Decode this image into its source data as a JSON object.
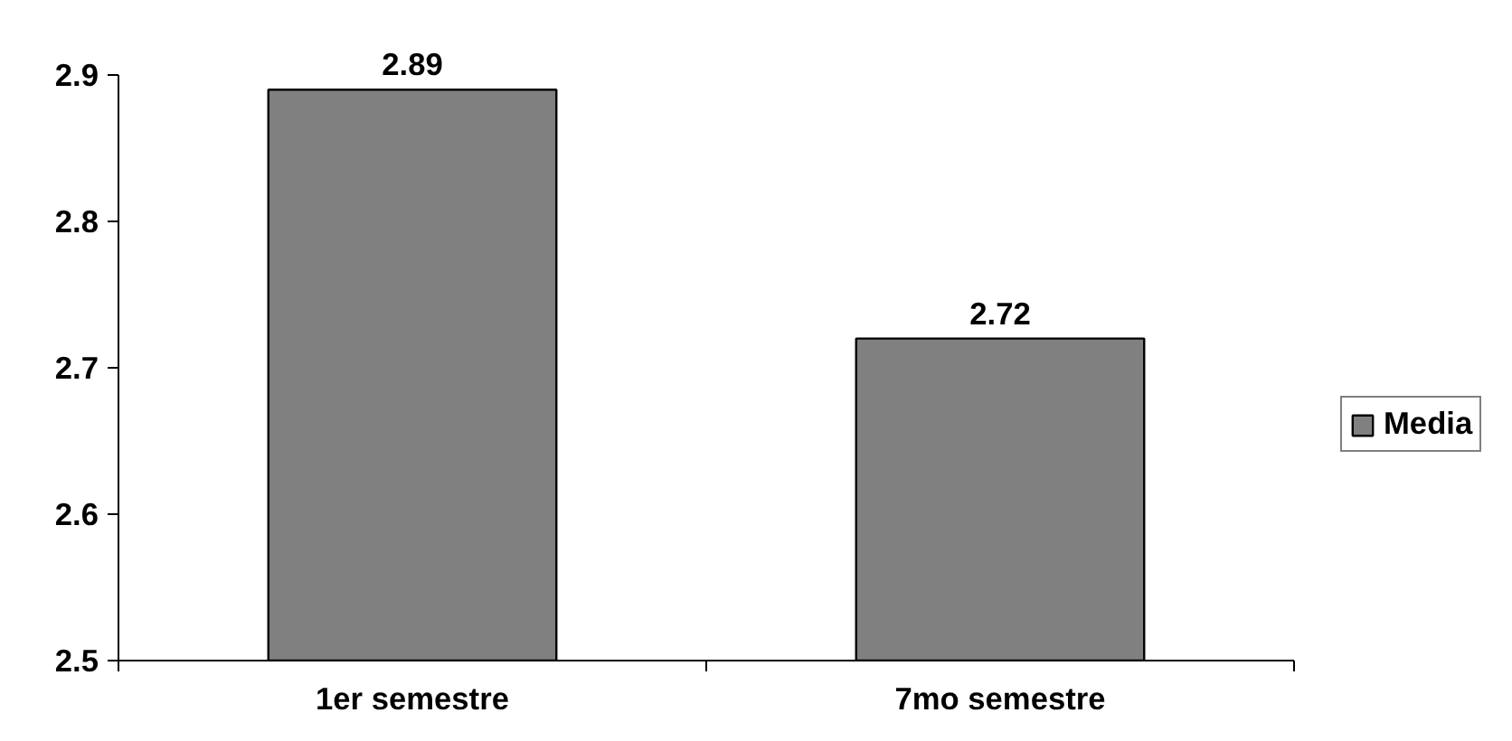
{
  "chart_data": {
    "type": "bar",
    "categories": [
      "1er semestre",
      "7mo semestre"
    ],
    "series": [
      {
        "name": "Media",
        "color": "#808080",
        "values": [
          2.89,
          2.72
        ]
      }
    ],
    "ylim": [
      2.5,
      2.9
    ],
    "yticks": [
      2.5,
      2.6,
      2.7,
      2.8,
      2.9
    ],
    "data_labels": true,
    "legend": "right",
    "grid": false
  }
}
